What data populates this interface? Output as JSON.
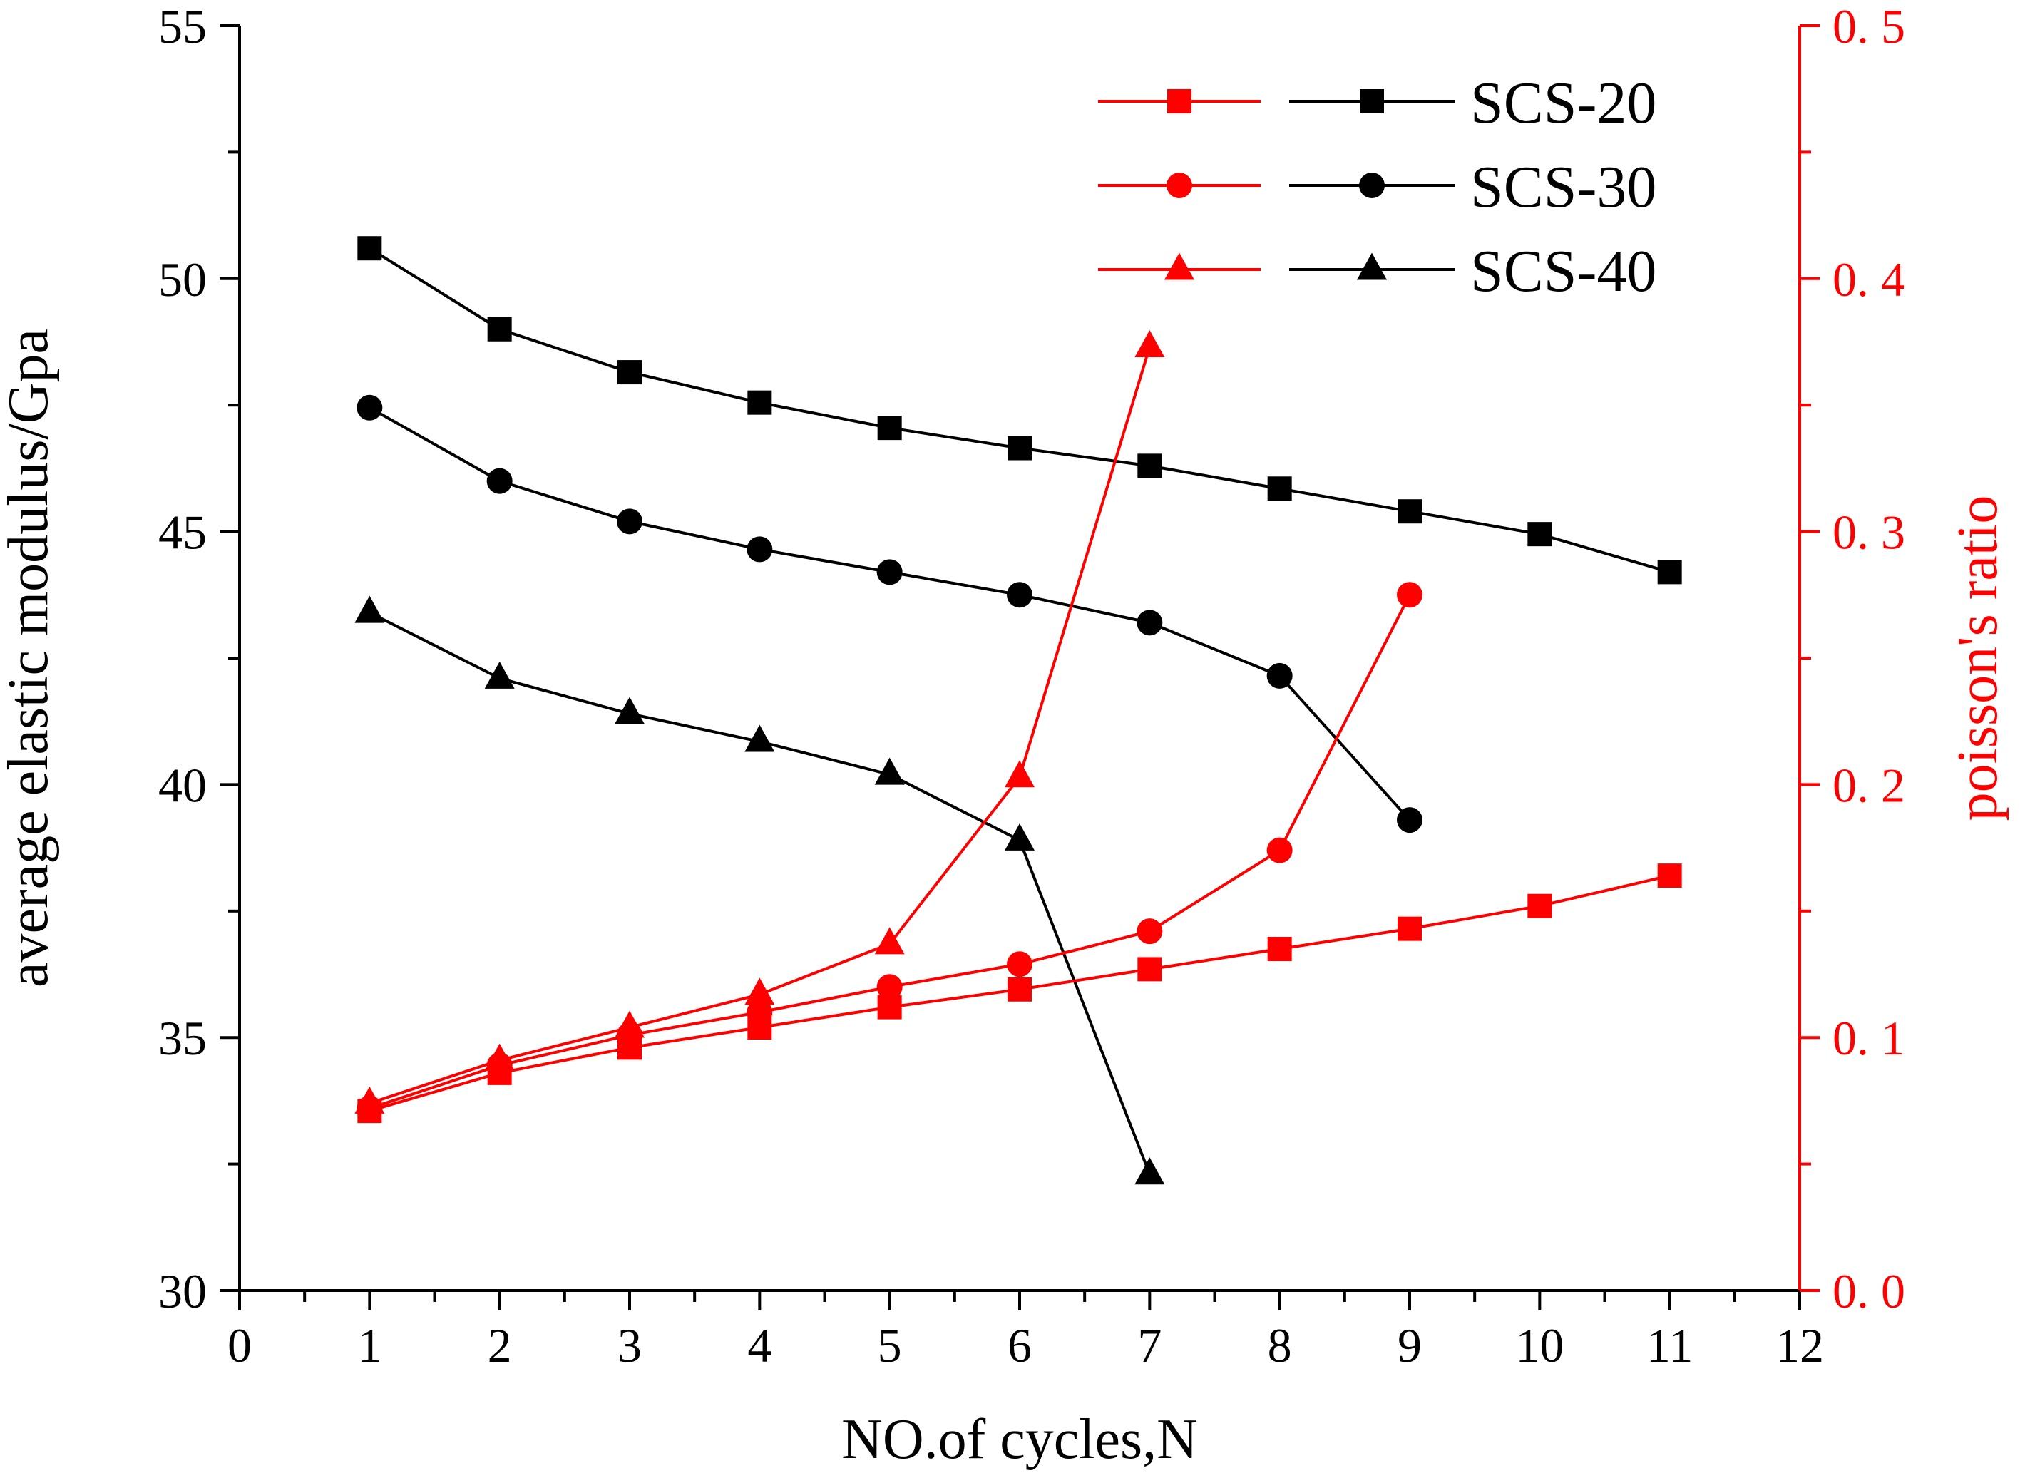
{
  "chart_data": {
    "type": "line",
    "title": "",
    "xlabel": "NO.of cycles,N",
    "ylabel_left": "average elastic modulus/Gpa",
    "ylabel_right": "poisson's ratio",
    "xlim": [
      0,
      12
    ],
    "ylim_left": [
      30,
      55
    ],
    "ylim_right": [
      0.0,
      0.5
    ],
    "x_ticks": [
      0,
      1,
      2,
      3,
      4,
      5,
      6,
      7,
      8,
      9,
      10,
      11,
      12
    ],
    "x_tick_labels": [
      "0",
      "1",
      "2",
      "3",
      "4",
      "5",
      "6",
      "7",
      "8",
      "9",
      "10",
      "11",
      "12"
    ],
    "y_left_ticks": [
      30,
      35,
      40,
      45,
      50,
      55
    ],
    "y_left_tick_labels": [
      "30",
      "35",
      "40",
      "45",
      "50",
      "55"
    ],
    "y_right_ticks": [
      0.0,
      0.1,
      0.2,
      0.3,
      0.4,
      0.5
    ],
    "y_right_tick_labels": [
      "0. 0",
      "0. 1",
      "0. 2",
      "0. 3",
      "0. 4",
      "0. 5"
    ],
    "legend_position": "top-right",
    "colors": {
      "modulus": "#000000",
      "poisson": "#ff0000",
      "axis_left": "#000000",
      "axis_right": "#ff0000"
    },
    "series": [
      {
        "name": "SCS-20",
        "axis": "left",
        "quantity": "modulus",
        "marker": "square",
        "x": [
          1,
          2,
          3,
          4,
          5,
          6,
          7,
          8,
          9,
          10,
          11
        ],
        "values": [
          50.6,
          49.0,
          48.15,
          47.55,
          47.05,
          46.65,
          46.3,
          45.85,
          45.4,
          44.95,
          44.2
        ]
      },
      {
        "name": "SCS-30",
        "axis": "left",
        "quantity": "modulus",
        "marker": "circle",
        "x": [
          1,
          2,
          3,
          4,
          5,
          6,
          7,
          8,
          9
        ],
        "values": [
          47.45,
          46.0,
          45.2,
          44.65,
          44.2,
          43.75,
          43.2,
          42.15,
          39.3
        ]
      },
      {
        "name": "SCS-40",
        "axis": "left",
        "quantity": "modulus",
        "marker": "triangle",
        "x": [
          1,
          2,
          3,
          4,
          5,
          6,
          7
        ],
        "values": [
          43.4,
          42.1,
          41.4,
          40.85,
          40.2,
          38.9,
          32.3
        ]
      },
      {
        "name": "SCS-20",
        "axis": "right",
        "quantity": "poisson",
        "marker": "square",
        "x": [
          1,
          2,
          3,
          4,
          5,
          6,
          7,
          8,
          9,
          10,
          11
        ],
        "values": [
          0.071,
          0.086,
          0.096,
          0.104,
          0.112,
          0.119,
          0.127,
          0.135,
          0.143,
          0.152,
          0.164
        ]
      },
      {
        "name": "SCS-30",
        "axis": "right",
        "quantity": "poisson",
        "marker": "circle",
        "x": [
          1,
          2,
          3,
          4,
          5,
          6,
          7,
          8,
          9
        ],
        "values": [
          0.072,
          0.089,
          0.101,
          0.11,
          0.12,
          0.129,
          0.142,
          0.174,
          0.275
        ]
      },
      {
        "name": "SCS-40",
        "axis": "right",
        "quantity": "poisson",
        "marker": "triangle",
        "x": [
          1,
          2,
          3,
          4,
          5,
          6,
          7
        ],
        "values": [
          0.074,
          0.091,
          0.104,
          0.117,
          0.137,
          0.203,
          0.373
        ]
      }
    ],
    "legend": [
      {
        "label": "SCS-20",
        "marker": "square"
      },
      {
        "label": "SCS-30",
        "marker": "circle"
      },
      {
        "label": "SCS-40",
        "marker": "triangle"
      }
    ]
  }
}
